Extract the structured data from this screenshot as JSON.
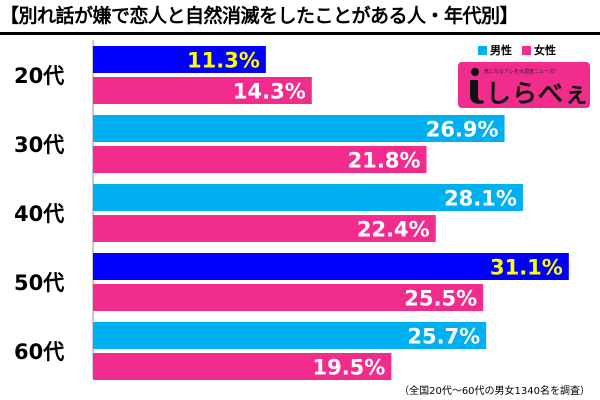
{
  "chart_data": {
    "type": "bar",
    "orientation": "horizontal",
    "title": "【別れ話が嫌で恋人と自然消滅をしたことがある人・年代別】",
    "categories": [
      "20代",
      "30代",
      "40代",
      "50代",
      "60代"
    ],
    "series": [
      {
        "name": "男性",
        "values": [
          11.3,
          26.9,
          28.1,
          31.1,
          25.7
        ],
        "labels": [
          "11.3%",
          "26.9%",
          "28.1%",
          "31.1%",
          "25.7%"
        ]
      },
      {
        "name": "女性",
        "values": [
          14.3,
          21.8,
          22.4,
          25.5,
          19.5
        ],
        "labels": [
          "14.3%",
          "21.8%",
          "22.4%",
          "25.5%",
          "19.5%"
        ]
      }
    ],
    "highlighted_male_bars": [
      0,
      3
    ],
    "xlim": [
      0,
      33
    ],
    "grid": false,
    "legend_position": "top-right",
    "footnote": "（全国20代～60代の男女1340名を調査）"
  },
  "colors": {
    "male": "#00b0f0",
    "male_highlight": "#0000ff",
    "female": "#f22c8c",
    "label_default": "#ffffff",
    "label_highlight": "#ffff00"
  },
  "logo": {
    "text": "しらべぇ",
    "tagline": "気になるアレを大調査ニュース!"
  }
}
